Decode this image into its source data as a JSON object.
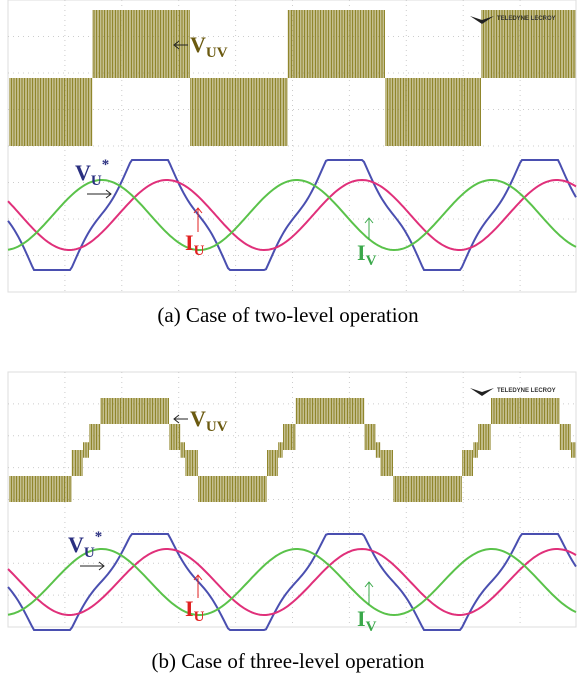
{
  "panels": [
    {
      "v_uv": {
        "main": "V",
        "sub": "UV"
      },
      "v_u": {
        "main": "V",
        "sub": "U",
        "sup": "*"
      },
      "i_u": {
        "main": "I",
        "sub": "U"
      },
      "i_v": {
        "main": "I",
        "sub": "V"
      },
      "logo": "TELEDYNE LECROY",
      "caption": "(a) Case of two-level operation"
    },
    {
      "v_uv": {
        "main": "V",
        "sub": "UV"
      },
      "v_u": {
        "main": "V",
        "sub": "U",
        "sup": "*"
      },
      "i_u": {
        "main": "I",
        "sub": "U"
      },
      "i_v": {
        "main": "I",
        "sub": "V"
      },
      "logo": "TELEDYNE LECROY",
      "caption": "(b) Case of three-level operation"
    }
  ]
}
